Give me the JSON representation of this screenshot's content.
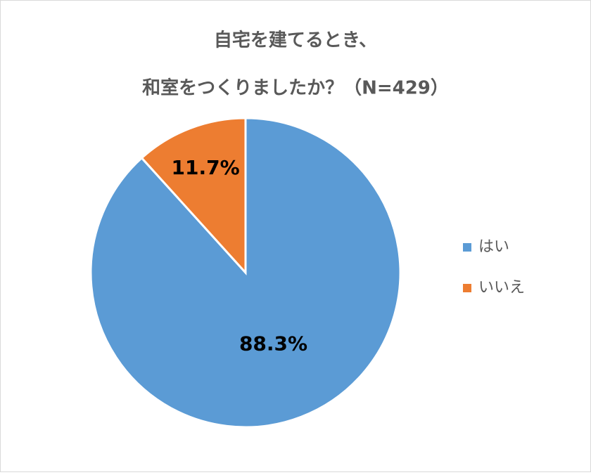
{
  "chart_data": {
    "type": "pie",
    "title": [
      "自宅を建てるとき、",
      "和室をつくりましたか？（N=429）"
    ],
    "categories": [
      "はい",
      "いいえ"
    ],
    "values": [
      88.3,
      11.7
    ],
    "value_labels": [
      "88.3%",
      "11.7%"
    ],
    "colors": [
      "#5b9bd5",
      "#ed7d31"
    ],
    "legend": "right"
  }
}
